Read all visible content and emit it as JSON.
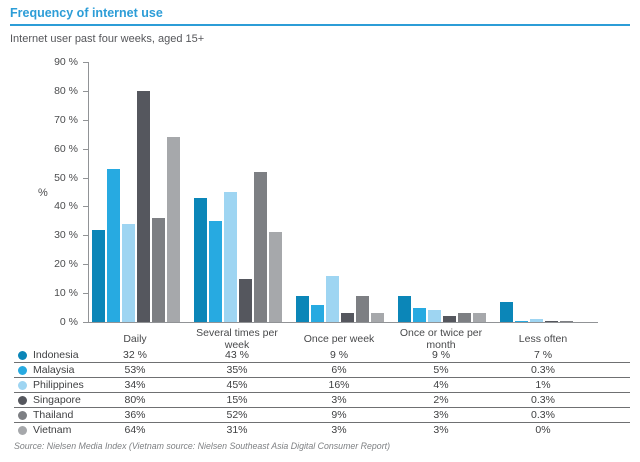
{
  "title": "Frequency of internet use",
  "subtitle": "Internet user past four weeks, aged 15+",
  "source": "Source: Nielsen Media Index (Vietnam source: Nielsen Southeast Asia Digital Consumer Report)",
  "colors": {
    "accent": "#2c9dd7",
    "axis": "#919396",
    "table_rule": "#6f7072"
  },
  "chart_data": {
    "type": "bar",
    "title": "Frequency of internet use",
    "subtitle": "Internet user past four weeks, aged 15+",
    "categories": [
      "Daily",
      "Several times per week",
      "Once per week",
      "Once or twice per month",
      "Less often"
    ],
    "xlabel": "",
    "ylabel": "%",
    "ylim": [
      0,
      90
    ],
    "yticks": [
      0,
      10,
      20,
      30,
      40,
      50,
      60,
      70,
      80,
      90
    ],
    "ytick_suffix": " %",
    "grid": false,
    "legend_position": "table-below",
    "series": [
      {
        "name": "Indonesia",
        "color": "#0b86b8",
        "values": [
          32,
          43,
          9,
          9,
          7
        ],
        "display": [
          "32 %",
          "43 %",
          "9 %",
          "9 %",
          "7 %"
        ]
      },
      {
        "name": "Malaysia",
        "color": "#27aae1",
        "values": [
          53,
          35,
          6,
          5,
          0.3
        ],
        "display": [
          "53%",
          "35%",
          "6%",
          "5%",
          "0.3%"
        ]
      },
      {
        "name": "Philippines",
        "color": "#9ed5f2",
        "values": [
          34,
          45,
          16,
          4,
          1
        ],
        "display": [
          "34%",
          "45%",
          "16%",
          "4%",
          "1%"
        ]
      },
      {
        "name": "Singapore",
        "color": "#55575e",
        "values": [
          80,
          15,
          3,
          2,
          0.3
        ],
        "display": [
          "80%",
          "15%",
          "3%",
          "2%",
          "0.3%"
        ]
      },
      {
        "name": "Thailand",
        "color": "#7d7f83",
        "values": [
          36,
          52,
          9,
          3,
          0.3
        ],
        "display": [
          "36%",
          "52%",
          "9%",
          "3%",
          "0.3%"
        ]
      },
      {
        "name": "Vietnam",
        "color": "#a6a8ab",
        "values": [
          64,
          31,
          3,
          3,
          0
        ],
        "display": [
          "64%",
          "31%",
          "3%",
          "3%",
          "0%"
        ]
      }
    ]
  }
}
